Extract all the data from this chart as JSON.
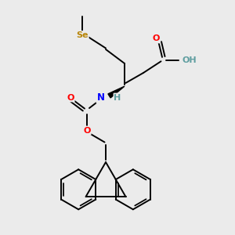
{
  "background_color": "#ebebeb",
  "atom_colors": {
    "C": "#000000",
    "O": "#ff0000",
    "N": "#0000ff",
    "Se": "#b8860b",
    "H": "#5f9ea0"
  },
  "bond_color": "#000000",
  "bond_width": 1.4,
  "figsize": [
    3.0,
    3.0
  ],
  "dpi": 100,
  "xlim": [
    0,
    10
  ],
  "ylim": [
    0,
    10
  ]
}
